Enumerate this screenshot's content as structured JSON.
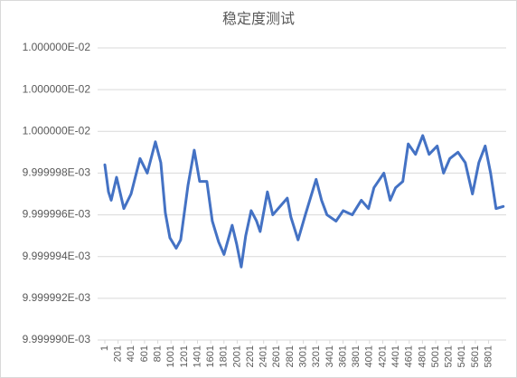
{
  "chart_data": {
    "type": "line",
    "title": "稳定度测试",
    "x": [
      1,
      56,
      97,
      178,
      288,
      397,
      533,
      642,
      765,
      847,
      915,
      984,
      1079,
      1147,
      1257,
      1352,
      1434,
      1543,
      1625,
      1721,
      1802,
      1925,
      1993,
      2062,
      2130,
      2212,
      2294,
      2348,
      2458,
      2539,
      2621,
      2758,
      2812,
      2921,
      3031,
      3194,
      3276,
      3358,
      3495,
      3603,
      3740,
      3877,
      3986,
      4068,
      4218,
      4313,
      4395,
      4504,
      4586,
      4696,
      4805,
      4901,
      5024,
      5120,
      5215,
      5338,
      5448,
      5557,
      5653,
      5749,
      5831,
      5913,
      6022
    ],
    "series": [
      {
        "color": "#4472c4",
        "values": [
          0.0099999984,
          0.0099999971,
          0.0099999967,
          0.0099999978,
          0.0099999963,
          0.009999997,
          0.0099999987,
          0.009999998,
          0.0099999995,
          0.0099999985,
          0.0099999961,
          0.0099999949,
          0.0099999944,
          0.0099999948,
          0.0099999974,
          0.0099999991,
          0.0099999976,
          0.0099999976,
          0.0099999957,
          0.0099999947,
          0.0099999941,
          0.0099999955,
          0.0099999946,
          0.0099999935,
          0.009999995,
          0.0099999962,
          0.0099999957,
          0.0099999952,
          0.0099999971,
          0.009999996,
          0.0099999963,
          0.0099999968,
          0.0099999959,
          0.0099999948,
          0.009999996,
          0.0099999977,
          0.0099999967,
          0.009999996,
          0.0099999957,
          0.0099999962,
          0.009999996,
          0.0099999967,
          0.0099999963,
          0.0099999973,
          0.009999998,
          0.0099999967,
          0.0099999973,
          0.0099999976,
          0.0099999994,
          0.0099999989,
          0.0099999998,
          0.0099999989,
          0.0099999993,
          0.009999998,
          0.0099999987,
          0.009999999,
          0.0099999985,
          0.009999997,
          0.0099999985,
          0.0099999993,
          0.009999998,
          0.0099999963,
          0.0099999964
        ]
      }
    ],
    "xlim": [
      1,
      6025
    ],
    "xticks": [
      1,
      201,
      401,
      601,
      801,
      1001,
      1201,
      1401,
      1601,
      1801,
      2001,
      2201,
      2401,
      2601,
      2801,
      3001,
      3201,
      3401,
      3601,
      3801,
      4001,
      4201,
      4401,
      4601,
      4801,
      5001,
      5201,
      5401,
      5601,
      5801
    ],
    "ylim": [
      0.00999999,
      0.010000004
    ],
    "yticks": [
      {
        "value": 0.00999999,
        "label": "9.999990E-03"
      },
      {
        "value": 0.009999992,
        "label": "9.999992E-03"
      },
      {
        "value": 0.009999994,
        "label": "9.999994E-03"
      },
      {
        "value": 0.009999996,
        "label": "9.999996E-03"
      },
      {
        "value": 0.009999998,
        "label": "9.999998E-03"
      },
      {
        "value": 0.01,
        "label": "1.000000E-02"
      },
      {
        "value": 0.010000002,
        "label": "1.000000E-02"
      },
      {
        "value": 0.010000004,
        "label": "1.000000E-02"
      }
    ],
    "grid": true
  }
}
